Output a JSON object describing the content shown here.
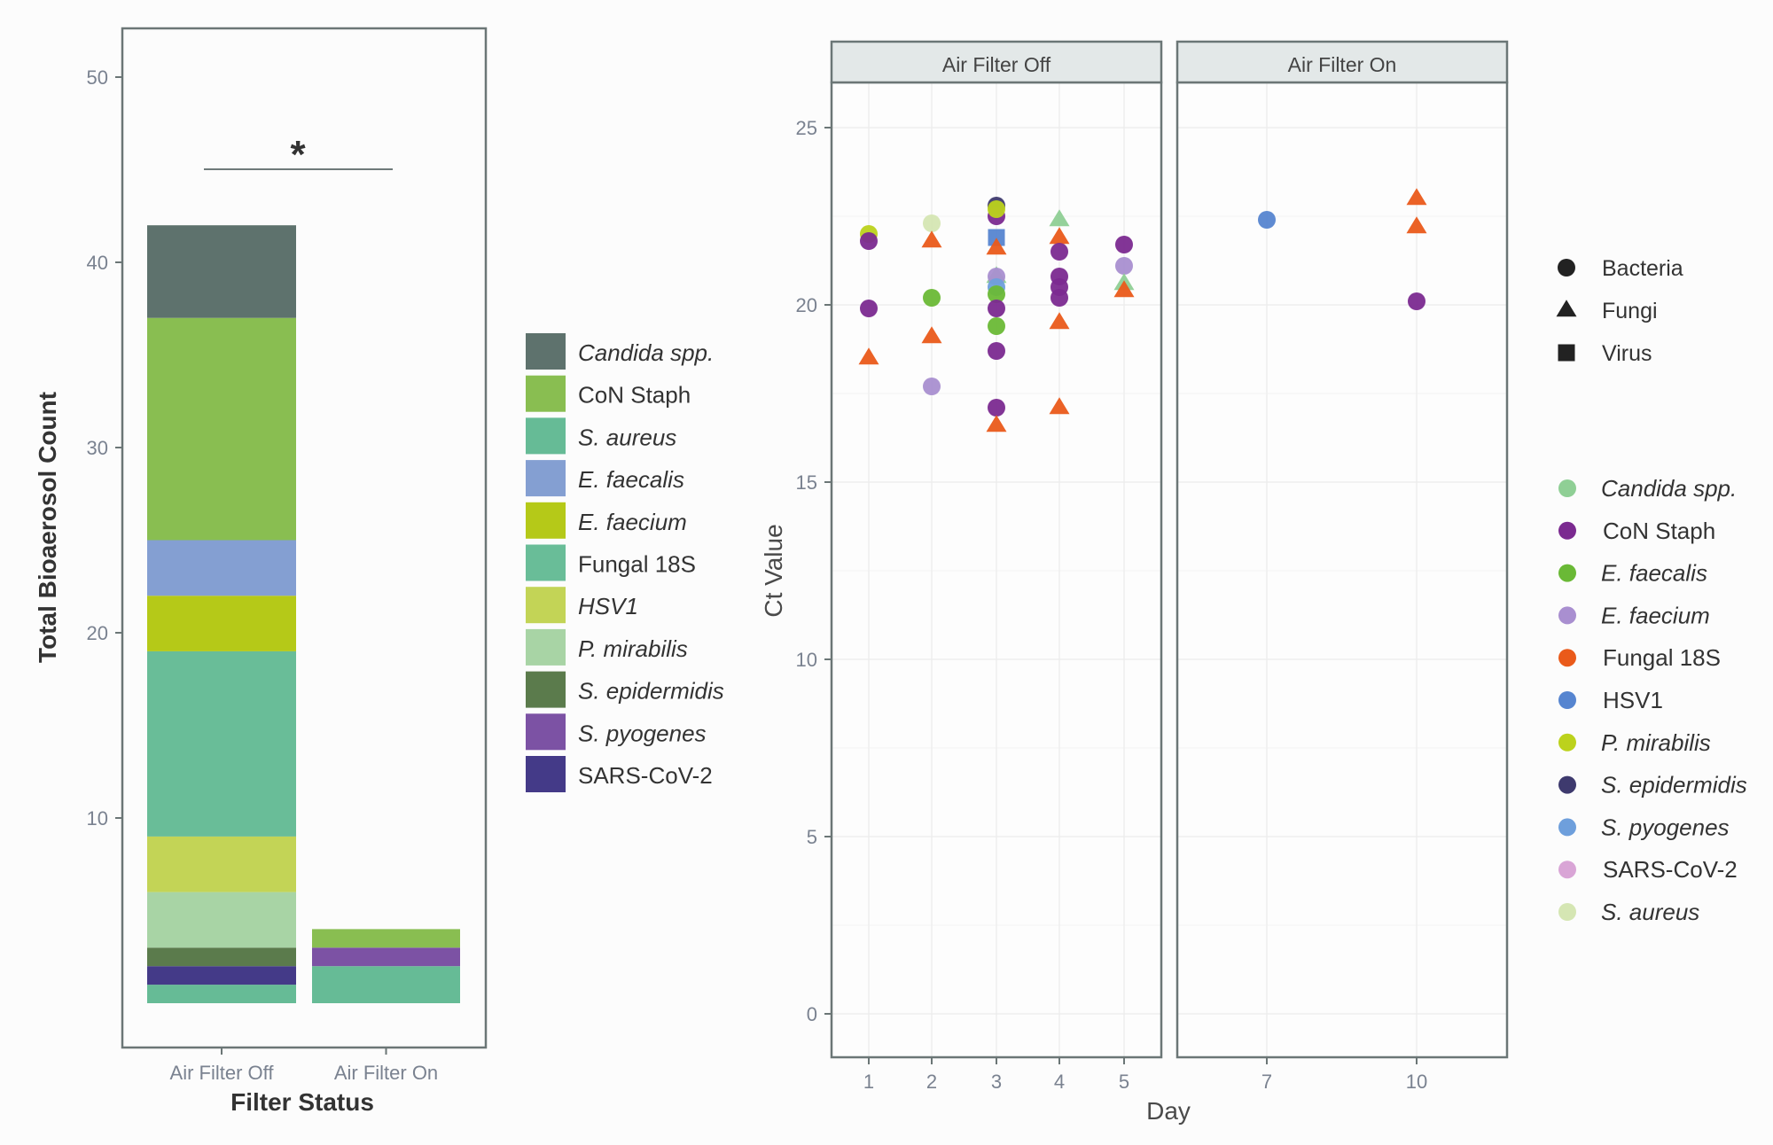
{
  "chart_data": [
    {
      "type": "bar",
      "stacked": true,
      "title": "",
      "xlabel": "Filter Status",
      "ylabel": "Total Bioaerosol Count",
      "ylim": [
        0,
        52
      ],
      "yticks": [
        10,
        20,
        30,
        40,
        50
      ],
      "categories": [
        "Air Filter Off",
        "Air Filter On"
      ],
      "significance": {
        "label": "*",
        "between": [
          "Air Filter Off",
          "Air Filter On"
        ],
        "at": 45
      },
      "legend": {
        "placement": "right",
        "items": [
          {
            "name": "Candida spp.",
            "italic": true,
            "color": "#5e726d"
          },
          {
            "name": "CoN Staph",
            "italic": false,
            "color": "#89be51"
          },
          {
            "name": "S. aureus",
            "italic": true,
            "color": "#66bb96"
          },
          {
            "name": "E. faecalis",
            "italic": true,
            "color": "#849fd2"
          },
          {
            "name": "E. faecium",
            "italic": true,
            "color": "#b5c918"
          },
          {
            "name": "Fungal 18S",
            "italic": false,
            "color": "#69bd98"
          },
          {
            "name": "HSV1",
            "italic": true,
            "color": "#c3d456"
          },
          {
            "name": "P. mirabilis",
            "italic": true,
            "color": "#a8d4a5"
          },
          {
            "name": "S. epidermidis",
            "italic": true,
            "color": "#5b7b4c"
          },
          {
            "name": "S. pyogenes",
            "italic": true,
            "color": "#7c52a4"
          },
          {
            "name": "SARS-CoV-2",
            "italic": false,
            "color": "#443a88"
          }
        ]
      },
      "series": [
        {
          "name": "S. aureus",
          "values": [
            1,
            2
          ]
        },
        {
          "name": "SARS-CoV-2",
          "values": [
            1,
            0
          ]
        },
        {
          "name": "S. pyogenes",
          "values": [
            0,
            1
          ]
        },
        {
          "name": "S. epidermidis",
          "values": [
            1,
            0
          ]
        },
        {
          "name": "P. mirabilis",
          "values": [
            3,
            0
          ]
        },
        {
          "name": "HSV1",
          "values": [
            3,
            0
          ]
        },
        {
          "name": "Fungal 18S",
          "values": [
            10,
            0
          ]
        },
        {
          "name": "E. faecium",
          "values": [
            3,
            0
          ]
        },
        {
          "name": "E. faecalis",
          "values": [
            3,
            0
          ]
        },
        {
          "name": "CoN Staph",
          "values": [
            12,
            1
          ]
        },
        {
          "name": "Candida spp.",
          "values": [
            5,
            0
          ]
        }
      ]
    },
    {
      "type": "scatter",
      "title": "",
      "xlabel": "Day",
      "ylabel": "Ct Value",
      "ylim": [
        -1.2,
        26.2
      ],
      "yticks": [
        0,
        5,
        10,
        15,
        20,
        25
      ],
      "grid": true,
      "facets": [
        {
          "label": "Air Filter Off",
          "xticks": [
            1,
            2,
            3,
            4,
            5
          ],
          "xlim": [
            0.2,
            5.6
          ]
        },
        {
          "label": "Air Filter On",
          "xticks": [
            7,
            10
          ],
          "xlim": [
            5.0,
            11.2
          ]
        }
      ],
      "shape_legend": {
        "placement": "right",
        "items": [
          {
            "name": "Bacteria",
            "shape": "circle"
          },
          {
            "name": "Fungi",
            "shape": "triangle"
          },
          {
            "name": "Virus",
            "shape": "square"
          }
        ]
      },
      "color_legend": {
        "placement": "right",
        "items": [
          {
            "name": "Candida spp.",
            "italic": true,
            "color": "#8fcf95"
          },
          {
            "name": "CoN Staph",
            "italic": false,
            "color": "#7b2a90"
          },
          {
            "name": "E. faecalis",
            "italic": true,
            "color": "#6ab936"
          },
          {
            "name": "E. faecium",
            "italic": true,
            "color": "#a98fd0"
          },
          {
            "name": "Fungal 18S",
            "italic": false,
            "color": "#ea5a1a"
          },
          {
            "name": "HSV1",
            "italic": false,
            "color": "#5685d0"
          },
          {
            "name": "P. mirabilis",
            "italic": true,
            "color": "#bcd21c"
          },
          {
            "name": "S. epidermidis",
            "italic": true,
            "color": "#3e3a6e"
          },
          {
            "name": "S. pyogenes",
            "italic": true,
            "color": "#6e9fdc"
          },
          {
            "name": "SARS-CoV-2",
            "italic": false,
            "color": "#d9a5d6"
          },
          {
            "name": "S. aureus",
            "italic": true,
            "color": "#d5e6b3"
          }
        ]
      },
      "points": [
        {
          "facet": 0,
          "day": 1,
          "ct": 22.0,
          "organism": "P. mirabilis",
          "shape": "circle"
        },
        {
          "facet": 0,
          "day": 1,
          "ct": 21.8,
          "organism": "CoN Staph",
          "shape": "circle"
        },
        {
          "facet": 0,
          "day": 1,
          "ct": 19.9,
          "organism": "CoN Staph",
          "shape": "circle"
        },
        {
          "facet": 0,
          "day": 1,
          "ct": 18.5,
          "organism": "Fungal 18S",
          "shape": "triangle"
        },
        {
          "facet": 0,
          "day": 2,
          "ct": 22.3,
          "organism": "S. aureus",
          "shape": "circle"
        },
        {
          "facet": 0,
          "day": 2,
          "ct": 21.8,
          "organism": "Fungal 18S",
          "shape": "triangle"
        },
        {
          "facet": 0,
          "day": 2,
          "ct": 20.2,
          "organism": "E. faecalis",
          "shape": "circle"
        },
        {
          "facet": 0,
          "day": 2,
          "ct": 19.1,
          "organism": "Fungal 18S",
          "shape": "triangle"
        },
        {
          "facet": 0,
          "day": 2,
          "ct": 17.7,
          "organism": "E. faecium",
          "shape": "circle"
        },
        {
          "facet": 0,
          "day": 3,
          "ct": 22.8,
          "organism": "S. epidermidis",
          "shape": "circle"
        },
        {
          "facet": 0,
          "day": 3,
          "ct": 22.5,
          "organism": "CoN Staph",
          "shape": "circle"
        },
        {
          "facet": 0,
          "day": 3,
          "ct": 22.7,
          "organism": "P. mirabilis",
          "shape": "circle"
        },
        {
          "facet": 0,
          "day": 3,
          "ct": 21.9,
          "organism": "HSV1",
          "shape": "square"
        },
        {
          "facet": 0,
          "day": 3,
          "ct": 21.6,
          "organism": "Fungal 18S",
          "shape": "triangle"
        },
        {
          "facet": 0,
          "day": 3,
          "ct": 20.8,
          "organism": "Candida spp.",
          "shape": "triangle"
        },
        {
          "facet": 0,
          "day": 3,
          "ct": 20.8,
          "organism": "E. faecium",
          "shape": "circle"
        },
        {
          "facet": 0,
          "day": 3,
          "ct": 20.5,
          "organism": "S. pyogenes",
          "shape": "circle"
        },
        {
          "facet": 0,
          "day": 3,
          "ct": 20.3,
          "organism": "E. faecalis",
          "shape": "circle"
        },
        {
          "facet": 0,
          "day": 3,
          "ct": 19.9,
          "organism": "CoN Staph",
          "shape": "circle"
        },
        {
          "facet": 0,
          "day": 3,
          "ct": 19.4,
          "organism": "E. faecalis",
          "shape": "circle"
        },
        {
          "facet": 0,
          "day": 3,
          "ct": 18.7,
          "organism": "CoN Staph",
          "shape": "circle"
        },
        {
          "facet": 0,
          "day": 3,
          "ct": 17.1,
          "organism": "CoN Staph",
          "shape": "circle"
        },
        {
          "facet": 0,
          "day": 3,
          "ct": 16.6,
          "organism": "Fungal 18S",
          "shape": "triangle"
        },
        {
          "facet": 0,
          "day": 4,
          "ct": 22.4,
          "organism": "Candida spp.",
          "shape": "triangle"
        },
        {
          "facet": 0,
          "day": 4,
          "ct": 21.9,
          "organism": "Fungal 18S",
          "shape": "triangle"
        },
        {
          "facet": 0,
          "day": 4,
          "ct": 21.5,
          "organism": "CoN Staph",
          "shape": "circle"
        },
        {
          "facet": 0,
          "day": 4,
          "ct": 20.8,
          "organism": "CoN Staph",
          "shape": "circle"
        },
        {
          "facet": 0,
          "day": 4,
          "ct": 20.5,
          "organism": "CoN Staph",
          "shape": "circle"
        },
        {
          "facet": 0,
          "day": 4,
          "ct": 20.2,
          "organism": "CoN Staph",
          "shape": "circle"
        },
        {
          "facet": 0,
          "day": 4,
          "ct": 19.5,
          "organism": "Fungal 18S",
          "shape": "triangle"
        },
        {
          "facet": 0,
          "day": 4,
          "ct": 17.1,
          "organism": "Fungal 18S",
          "shape": "triangle"
        },
        {
          "facet": 0,
          "day": 5,
          "ct": 21.7,
          "organism": "CoN Staph",
          "shape": "circle"
        },
        {
          "facet": 0,
          "day": 5,
          "ct": 21.1,
          "organism": "E. faecium",
          "shape": "circle"
        },
        {
          "facet": 0,
          "day": 5,
          "ct": 20.6,
          "organism": "Candida spp.",
          "shape": "triangle"
        },
        {
          "facet": 0,
          "day": 5,
          "ct": 20.4,
          "organism": "Fungal 18S",
          "shape": "triangle"
        },
        {
          "facet": 1,
          "day": 7,
          "ct": 22.4,
          "organism": "HSV1",
          "shape": "circle"
        },
        {
          "facet": 1,
          "day": 10,
          "ct": 23.0,
          "organism": "Fungal 18S",
          "shape": "triangle"
        },
        {
          "facet": 1,
          "day": 10,
          "ct": 22.2,
          "organism": "Fungal 18S",
          "shape": "triangle"
        },
        {
          "facet": 1,
          "day": 10,
          "ct": 20.1,
          "organism": "CoN Staph",
          "shape": "circle"
        }
      ]
    }
  ]
}
